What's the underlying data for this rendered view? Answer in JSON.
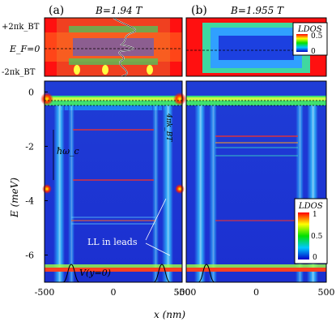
{
  "figure": {
    "panel_a_label": "(a)",
    "panel_b_label": "(b)",
    "panel_a_field": "B=1.94 T",
    "panel_b_field": "B=1.955 T",
    "top_ytick_upper": "+2πk_BT",
    "top_ytick_mid": "E_F=0",
    "top_ytick_lower": "-2πk_BT",
    "y_axis_label": "E (meV)",
    "x_axis_label": "x (nm)",
    "inset_colorbar_title": "LDOS",
    "inset_colorbar_max": "0.5",
    "inset_colorbar_min": "0",
    "main_colorbar_title": "LDOS",
    "main_colorbar_max": "1",
    "main_colorbar_mid": "0.5",
    "main_colorbar_min": "0",
    "annotation_hbar_omega": "ħω_c",
    "annotation_4pikt": "4πk_BT",
    "annotation_ll_leads": "LL in leads",
    "annotation_potential": "V(y=0)"
  },
  "chart_data": [
    {
      "type": "heatmap",
      "panel": "a",
      "title": "B=1.94 T",
      "xlabel": "x (nm)",
      "ylabel": "E (meV)",
      "xlim": [
        -500,
        500
      ],
      "ylim": [
        -7,
        0.4
      ],
      "x_ticks": [
        "-500",
        "0",
        "500"
      ],
      "y_ticks": [
        "0",
        "-2",
        "-4",
        "-6"
      ],
      "colorbar": {
        "label": "LDOS",
        "min": 0,
        "max": 1,
        "ticks": [
          "0",
          "0.5",
          "1"
        ]
      },
      "landau_levels_meV": [
        -0.15,
        -1.3,
        -2.85,
        -4.35,
        -5.85,
        -6.45
      ]
    },
    {
      "type": "heatmap",
      "panel": "b",
      "title": "B=1.955 T",
      "xlabel": "x (nm)",
      "xlim": [
        -500,
        500
      ],
      "ylim": [
        -7,
        0.4
      ],
      "x_ticks": [
        "-500",
        "0",
        "500"
      ],
      "colorbar": {
        "label": "LDOS",
        "min": 0,
        "max": 1,
        "ticks": [
          "0",
          "0.5",
          "1"
        ]
      }
    }
  ]
}
